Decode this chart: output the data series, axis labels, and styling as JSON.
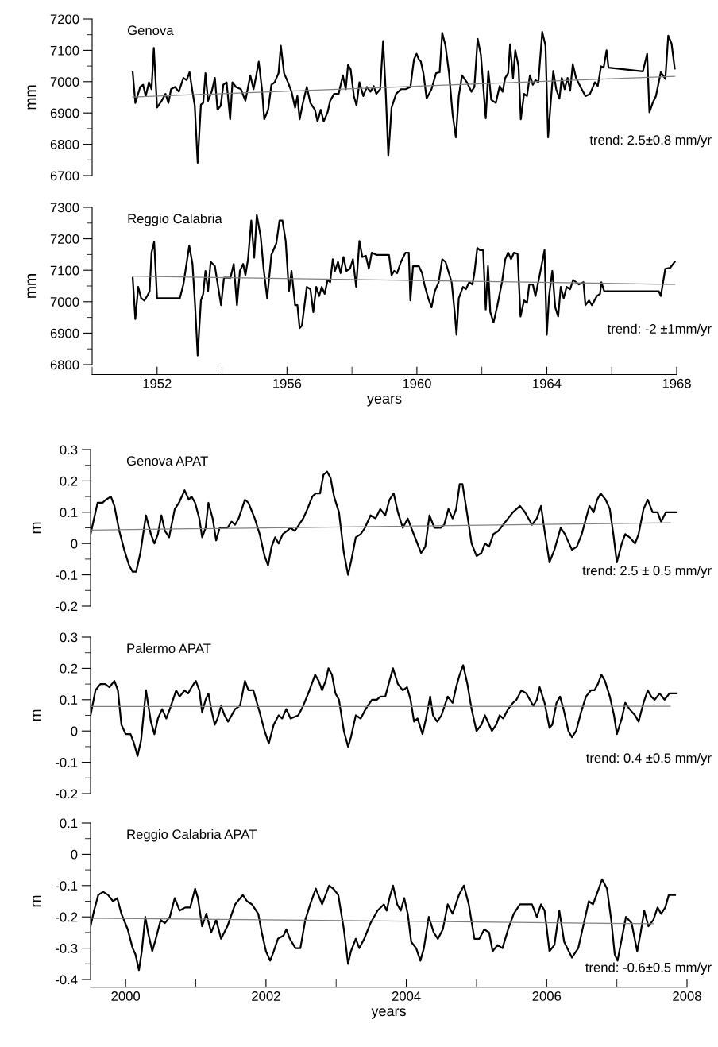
{
  "chart_data": [
    {
      "type": "line",
      "title": "Genova",
      "ylabel": "mm",
      "xlim": [
        1950,
        1968
      ],
      "ylim": [
        6700,
        7200
      ],
      "yticks": [
        6700,
        {
          "value": 6750,
          "label": null
        },
        6800,
        {
          "value": 6850,
          "label": null
        },
        6900,
        {
          "value": 6950,
          "label": null
        },
        7000,
        {
          "value": 7050,
          "label": null
        },
        7100,
        {
          "value": 7150,
          "label": null
        },
        7200
      ],
      "tick_labels": "y",
      "annotations": [
        "trend: 2.5±0.8 mm/yr"
      ],
      "series": [
        {
          "color": "#000000",
          "x": [
            1951.25,
            1951.33,
            1951.48,
            1951.57,
            1951.65,
            1951.75,
            1951.83,
            1951.9,
            1952.0,
            1952.14,
            1952.26,
            1952.35,
            1952.43,
            1952.55,
            1952.67,
            1952.81,
            1952.91,
            1953.0,
            1953.09,
            1953.16,
            1953.25,
            1953.35,
            1953.42,
            1953.49,
            1953.57,
            1953.68,
            1953.78,
            1953.86,
            1953.96,
            1954.04,
            1954.14,
            1954.25,
            1954.32,
            1954.43,
            1954.58,
            1954.72,
            1954.87,
            1954.97,
            1955.04,
            1955.13,
            1955.23,
            1955.3,
            1955.42,
            1955.52,
            1955.62,
            1955.74,
            1955.81,
            1955.91,
            1956.03,
            1956.14,
            1956.25,
            1956.32,
            1956.39,
            1956.49,
            1956.61,
            1956.72,
            1956.86,
            1956.94,
            1957.04,
            1957.13,
            1957.25,
            1957.33,
            1957.45,
            1957.59,
            1957.72,
            1957.81,
            1957.88,
            1957.96,
            1958.06,
            1958.14,
            1958.23,
            1958.35,
            1958.46,
            1958.57,
            1958.67,
            1958.75,
            1958.87,
            1958.96,
            1959.04,
            1959.12,
            1959.22,
            1959.36,
            1959.51,
            1959.65,
            1959.8,
            1959.91,
            1959.99,
            1960.06,
            1960.12,
            1960.2,
            1960.3,
            1960.45,
            1960.59,
            1960.7,
            1960.78,
            1960.88,
            1960.99,
            1961.1,
            1961.2,
            1961.29,
            1961.39,
            1961.54,
            1961.68,
            1961.77,
            1961.87,
            1961.97,
            1962.12,
            1962.2,
            1962.29,
            1962.43,
            1962.55,
            1962.64,
            1962.72,
            1962.81,
            1962.87,
            1962.96,
            1963.03,
            1963.13,
            1963.2,
            1963.3,
            1963.39,
            1963.48,
            1963.57,
            1963.65,
            1963.74,
            1963.86,
            1963.96,
            1964.04,
            1964.12,
            1964.2,
            1964.29,
            1964.39,
            1964.46,
            1964.55,
            1964.64,
            1964.72,
            1964.8,
            1964.9,
            1965.04,
            1965.19,
            1965.33,
            1965.48,
            1965.57,
            1965.67,
            1965.75,
            1965.84,
            1965.9,
            1966.96,
            1967.09,
            1967.16,
            1967.26,
            1967.36,
            1967.51,
            1967.65,
            1967.74,
            1967.84,
            1967.94
          ],
          "values": [
            7030,
            6932,
            6983,
            6990,
            6954,
            6998,
            6976,
            7108,
            6917,
            6939,
            6961,
            6932,
            6976,
            6983,
            6968,
            7012,
            7005,
            7030,
            6968,
            6924,
            6741,
            6927,
            6932,
            7027,
            6939,
            6968,
            7012,
            6910,
            6924,
            6990,
            6998,
            6880,
            6998,
            6983,
            6976,
            6939,
            7020,
            6976,
            7012,
            7064,
            6976,
            6880,
            6910,
            6990,
            6998,
            7027,
            7115,
            7027,
            6998,
            6968,
            6917,
            6954,
            6880,
            6932,
            6983,
            6932,
            6910,
            6873,
            6910,
            6873,
            6902,
            6939,
            6961,
            6961,
            7020,
            6976,
            7053,
            7039,
            6954,
            6924,
            6998,
            6954,
            6983,
            6968,
            6986,
            6961,
            6976,
            7130,
            6968,
            6763,
            6917,
            6961,
            6976,
            6976,
            6983,
            7071,
            7089,
            7071,
            7065,
            7027,
            6946,
            6976,
            7027,
            7030,
            7156,
            7115,
            7027,
            6895,
            6822,
            6954,
            7020,
            6998,
            6968,
            6983,
            7137,
            7086,
            6883,
            7034,
            6942,
            6932,
            6986,
            6968,
            7012,
            7027,
            7119,
            7012,
            7100,
            7049,
            6880,
            6961,
            6954,
            7020,
            6990,
            7005,
            6998,
            7159,
            7115,
            6822,
            6932,
            7034,
            6976,
            6946,
            7012,
            6976,
            7012,
            6971,
            7056,
            7012,
            6983,
            6954,
            6961,
            6998,
            6986,
            7049,
            7045,
            7100,
            7045,
            7033,
            7089,
            6902,
            6932,
            6954,
            7030,
            7009,
            7147,
            7122,
            7042
          ]
        },
        {
          "type": "line",
          "color": "#808080",
          "x": [
            1951.25,
            1967.94
          ],
          "values": [
            6951,
            7017
          ]
        }
      ]
    },
    {
      "type": "line",
      "title": "Reggio Calabria",
      "ylabel": "mm",
      "xlabel": "years",
      "xlim": [
        1950,
        1968
      ],
      "xticks": [
        {
          "value": 1950,
          "label": null
        },
        1952,
        {
          "value": 1954,
          "label": null
        },
        1956,
        {
          "value": 1958,
          "label": null
        },
        1960,
        {
          "value": 1962,
          "label": null
        },
        1964,
        {
          "value": 1966,
          "label": null
        },
        1968
      ],
      "ylim": [
        6800,
        7300
      ],
      "yticks": [
        6800,
        {
          "value": 6850,
          "label": null
        },
        6900,
        {
          "value": 6950,
          "label": null
        },
        7000,
        {
          "value": 7050,
          "label": null
        },
        7100,
        {
          "value": 7150,
          "label": null
        },
        7200,
        {
          "value": 7250,
          "label": null
        },
        7300
      ],
      "annotations": [
        "trend: -2 ±1mm/yr"
      ],
      "series": [
        {
          "color": "#000000",
          "x": [
            1951.25,
            1951.33,
            1951.42,
            1951.51,
            1951.61,
            1951.71,
            1951.77,
            1951.83,
            1951.91,
            1952.0,
            1952.7,
            1952.81,
            1952.99,
            1953.09,
            1953.17,
            1953.25,
            1953.35,
            1953.42,
            1953.49,
            1953.57,
            1953.65,
            1953.78,
            1953.88,
            1953.97,
            1954.06,
            1954.26,
            1954.36,
            1954.46,
            1954.55,
            1954.65,
            1954.72,
            1954.8,
            1954.9,
            1954.99,
            1955.07,
            1955.19,
            1955.28,
            1955.39,
            1955.52,
            1955.67,
            1955.77,
            1955.86,
            1955.96,
            1956.06,
            1956.14,
            1956.25,
            1956.32,
            1956.39,
            1956.46,
            1956.61,
            1956.72,
            1956.81,
            1956.9,
            1956.99,
            1957.07,
            1957.16,
            1957.25,
            1957.33,
            1957.41,
            1957.48,
            1957.57,
            1957.65,
            1957.74,
            1957.83,
            1957.94,
            1958.03,
            1958.13,
            1958.23,
            1958.32,
            1958.43,
            1958.52,
            1958.61,
            1958.75,
            1959.14,
            1959.22,
            1959.3,
            1959.39,
            1959.51,
            1959.65,
            1959.75,
            1959.8,
            1959.88,
            1960.06,
            1960.16,
            1960.23,
            1960.35,
            1960.45,
            1960.55,
            1960.67,
            1960.78,
            1960.88,
            1961.07,
            1961.17,
            1961.22,
            1961.29,
            1961.42,
            1961.51,
            1961.61,
            1961.71,
            1961.77,
            1961.86,
            1961.94,
            1962.04,
            1962.12,
            1962.19,
            1962.26,
            1962.36,
            1962.48,
            1962.62,
            1962.72,
            1962.81,
            1962.9,
            1962.99,
            1963.1,
            1963.19,
            1963.3,
            1963.39,
            1963.46,
            1963.57,
            1963.65,
            1963.78,
            1963.93,
            1964.0,
            1964.07,
            1964.17,
            1964.26,
            1964.35,
            1964.43,
            1964.52,
            1964.61,
            1964.72,
            1964.81,
            1964.99,
            1965.13,
            1965.19,
            1965.3,
            1965.39,
            1965.54,
            1965.64,
            1965.68,
            1965.77,
            1967.45,
            1967.51,
            1967.65,
            1967.8,
            1967.94
          ],
          "values": [
            7076,
            6945,
            7047,
            7011,
            7004,
            7021,
            7033,
            7156,
            7190,
            7011,
            7011,
            7055,
            7178,
            7120,
            6989,
            6829,
            7004,
            7025,
            7098,
            7033,
            7127,
            7113,
            7047,
            6989,
            7076,
            7076,
            7120,
            6989,
            7098,
            7120,
            7084,
            7135,
            7258,
            7140,
            7275,
            7207,
            7105,
            7011,
            7149,
            7185,
            7258,
            7258,
            7193,
            7033,
            7098,
            6989,
            6989,
            6916,
            6924,
            7047,
            7040,
            6967,
            7047,
            7018,
            7047,
            7025,
            7069,
            7062,
            7135,
            7098,
            7127,
            7091,
            7142,
            7098,
            7105,
            7135,
            7047,
            7193,
            7142,
            7146,
            7105,
            7156,
            7149,
            7149,
            7084,
            7098,
            7091,
            7127,
            7156,
            7156,
            7004,
            7113,
            7113,
            7091,
            7055,
            7011,
            6982,
            7033,
            7062,
            7135,
            7127,
            7062,
            6960,
            6895,
            7011,
            7047,
            7040,
            7062,
            7055,
            7091,
            7171,
            7164,
            7164,
            6975,
            7113,
            6967,
            6934,
            6989,
            7062,
            7135,
            7156,
            7135,
            7156,
            7152,
            6953,
            7004,
            6996,
            7055,
            7055,
            7018,
            7084,
            7164,
            6895,
            7018,
            7098,
            6982,
            6953,
            7047,
            7011,
            7047,
            7040,
            7069,
            7055,
            7062,
            6989,
            7004,
            6989,
            7018,
            7025,
            7062,
            7033,
            7033,
            7018,
            7105,
            7108,
            7127
          ]
        },
        {
          "type": "line",
          "color": "#808080",
          "x": [
            1951.25,
            1967.94
          ],
          "values": [
            7081,
            7055
          ]
        }
      ]
    },
    {
      "type": "line",
      "title": "Genova APAT",
      "ylabel": "m",
      "xlim": [
        1999.5,
        2008
      ],
      "ylim": [
        -0.2,
        0.3
      ],
      "yticks": [
        -0.2,
        {
          "value": -0.15,
          "label": null
        },
        -0.1,
        {
          "value": -0.05,
          "label": null
        },
        0,
        {
          "value": 0.05,
          "label": null
        },
        0.1,
        {
          "value": 0.15,
          "label": null
        },
        0.2,
        {
          "value": 0.25,
          "label": null
        },
        0.3
      ],
      "tick_labels": "y",
      "annotations": [
        "trend: 2.5 ± 0.5 mm/yr"
      ],
      "series": [
        {
          "color": "#000000",
          "x": [
            1999.5,
            1999.6,
            1999.67,
            1999.72,
            1999.79,
            1999.84,
            1999.91,
            1999.98,
            2000.05,
            2000.1,
            2000.15,
            2000.21,
            2000.29,
            2000.36,
            2000.41,
            2000.46,
            2000.51,
            2000.56,
            2000.62,
            2000.7,
            2000.76,
            2000.84,
            2000.9,
            2000.94,
            2000.99,
            2001.05,
            2001.09,
            2001.14,
            2001.18,
            2001.24,
            2001.29,
            2001.34,
            2001.39,
            2001.45,
            2001.51,
            2001.56,
            2001.61,
            2001.7,
            2001.75,
            2001.84,
            2001.91,
            2001.98,
            2002.03,
            2002.08,
            2002.13,
            2002.18,
            2002.24,
            2002.3,
            2002.35,
            2002.41,
            2002.47,
            2002.53,
            2002.59,
            2002.66,
            2002.71,
            2002.77,
            2002.82,
            2002.87,
            2002.92,
            2002.97,
            2003.04,
            2003.11,
            2003.17,
            2003.21,
            2003.28,
            2003.35,
            2003.41,
            2003.49,
            2003.56,
            2003.63,
            2003.7,
            2003.76,
            2003.82,
            2003.88,
            2003.95,
            2004.02,
            2004.07,
            2004.14,
            2004.21,
            2004.27,
            2004.33,
            2004.4,
            2004.49,
            2004.54,
            2004.6,
            2004.66,
            2004.71,
            2004.76,
            2004.8,
            2004.87,
            2004.93,
            2005.0,
            2005.07,
            2005.12,
            2005.18,
            2005.24,
            2005.31,
            2005.38,
            2005.45,
            2005.52,
            2005.62,
            2005.69,
            2005.79,
            2005.86,
            2005.92,
            2005.97,
            2006.04,
            2006.11,
            2006.2,
            2006.26,
            2006.36,
            2006.43,
            2006.5,
            2006.56,
            2006.61,
            2006.67,
            2006.72,
            2006.77,
            2006.84,
            2006.9,
            2006.95,
            2007.0,
            2007.07,
            2007.12,
            2007.18,
            2007.26,
            2007.31,
            2007.38,
            2007.44,
            2007.51,
            2007.58,
            2007.63,
            2007.7,
            2007.85
          ],
          "values": [
            0.03,
            0.13,
            0.13,
            0.14,
            0.15,
            0.12,
            0.04,
            -0.02,
            -0.07,
            -0.09,
            -0.09,
            -0.03,
            0.09,
            0.03,
            0.0,
            0.03,
            0.09,
            0.04,
            0.02,
            0.11,
            0.13,
            0.17,
            0.14,
            0.15,
            0.13,
            0.08,
            0.02,
            0.05,
            0.13,
            0.08,
            0.01,
            0.05,
            0.05,
            0.05,
            0.07,
            0.06,
            0.08,
            0.14,
            0.13,
            0.08,
            0.03,
            -0.04,
            -0.07,
            -0.01,
            0.02,
            0.0,
            0.03,
            0.04,
            0.05,
            0.04,
            0.06,
            0.08,
            0.11,
            0.15,
            0.16,
            0.16,
            0.22,
            0.23,
            0.21,
            0.15,
            0.1,
            -0.03,
            -0.1,
            -0.06,
            0.02,
            0.03,
            0.05,
            0.09,
            0.08,
            0.11,
            0.09,
            0.14,
            0.16,
            0.1,
            0.05,
            0.08,
            0.05,
            0.01,
            -0.03,
            -0.01,
            0.09,
            0.05,
            0.05,
            0.06,
            0.11,
            0.08,
            0.11,
            0.19,
            0.19,
            0.09,
            0.0,
            -0.04,
            -0.03,
            0.0,
            -0.01,
            0.03,
            0.04,
            0.06,
            0.08,
            0.1,
            0.12,
            0.1,
            0.06,
            0.08,
            0.12,
            0.04,
            -0.06,
            -0.02,
            0.05,
            0.03,
            -0.02,
            -0.01,
            0.03,
            0.08,
            0.12,
            0.1,
            0.14,
            0.16,
            0.14,
            0.11,
            0.03,
            -0.06,
            0.0,
            0.03,
            0.02,
            0.0,
            0.03,
            0.11,
            0.14,
            0.1,
            0.1,
            0.07,
            0.1,
            0.1
          ]
        },
        {
          "type": "line",
          "color": "#808080",
          "x": [
            1999.5,
            2007.76
          ],
          "values": [
            0.043,
            0.066
          ]
        }
      ]
    },
    {
      "type": "line",
      "title": "Palermo APAT",
      "ylabel": "m",
      "xlim": [
        1999.5,
        2008
      ],
      "ylim": [
        -0.2,
        0.3
      ],
      "yticks": [
        -0.2,
        {
          "value": -0.15,
          "label": null
        },
        -0.1,
        {
          "value": -0.05,
          "label": null
        },
        0,
        {
          "value": 0.05,
          "label": null
        },
        0.1,
        {
          "value": 0.15,
          "label": null
        },
        0.2,
        {
          "value": 0.25,
          "label": null
        },
        0.3
      ],
      "tick_labels": "y",
      "annotations": [
        "trend: 0.4 ±0.5 mm/yr"
      ],
      "series": [
        {
          "color": "#000000",
          "x": [
            1999.5,
            1999.57,
            1999.64,
            1999.71,
            1999.77,
            1999.84,
            1999.89,
            1999.94,
            2000.0,
            2000.07,
            2000.12,
            2000.17,
            2000.22,
            2000.29,
            2000.36,
            2000.41,
            2000.46,
            2000.52,
            2000.58,
            2000.63,
            2000.72,
            2000.77,
            2000.84,
            2000.89,
            2000.94,
            2001.0,
            2001.05,
            2001.09,
            2001.14,
            2001.18,
            2001.22,
            2001.27,
            2001.31,
            2001.36,
            2001.41,
            2001.46,
            2001.51,
            2001.56,
            2001.63,
            2001.7,
            2001.75,
            2001.82,
            2001.91,
            2001.98,
            2002.04,
            2002.11,
            2002.18,
            2002.23,
            2002.29,
            2002.35,
            2002.46,
            2002.53,
            2002.62,
            2002.7,
            2002.75,
            2002.8,
            2002.85,
            2002.89,
            2002.94,
            2002.99,
            2003.04,
            2003.11,
            2003.17,
            2003.21,
            2003.28,
            2003.35,
            2003.42,
            2003.51,
            2003.58,
            2003.63,
            2003.7,
            2003.76,
            2003.81,
            2003.88,
            2003.95,
            2004.01,
            2004.06,
            2004.11,
            2004.16,
            2004.23,
            2004.28,
            2004.34,
            2004.38,
            2004.44,
            2004.5,
            2004.59,
            2004.66,
            2004.71,
            2004.76,
            2004.81,
            2004.87,
            2004.93,
            2005.0,
            2005.07,
            2005.12,
            2005.18,
            2005.22,
            2005.28,
            2005.33,
            2005.38,
            2005.45,
            2005.52,
            2005.57,
            2005.64,
            2005.71,
            2005.76,
            2005.81,
            2005.86,
            2005.9,
            2005.97,
            2006.04,
            2006.08,
            2006.14,
            2006.19,
            2006.24,
            2006.31,
            2006.36,
            2006.42,
            2006.49,
            2006.56,
            2006.63,
            2006.68,
            2006.73,
            2006.78,
            2006.83,
            2006.9,
            2006.96,
            2007.0,
            2007.07,
            2007.12,
            2007.18,
            2007.26,
            2007.31,
            2007.38,
            2007.44,
            2007.49,
            2007.54,
            2007.61,
            2007.68,
            2007.75,
            2007.85
          ],
          "values": [
            0.05,
            0.13,
            0.15,
            0.15,
            0.14,
            0.16,
            0.13,
            0.02,
            -0.01,
            -0.01,
            -0.04,
            -0.08,
            -0.03,
            0.13,
            0.03,
            -0.01,
            0.04,
            0.07,
            0.04,
            0.07,
            0.13,
            0.11,
            0.13,
            0.12,
            0.14,
            0.16,
            0.13,
            0.06,
            0.1,
            0.12,
            0.07,
            0.02,
            0.04,
            0.08,
            0.05,
            0.03,
            0.05,
            0.07,
            0.08,
            0.16,
            0.13,
            0.13,
            0.06,
            0.0,
            -0.04,
            0.02,
            0.05,
            0.04,
            0.07,
            0.04,
            0.05,
            0.08,
            0.13,
            0.18,
            0.16,
            0.13,
            0.16,
            0.2,
            0.18,
            0.12,
            0.1,
            0.0,
            -0.05,
            -0.02,
            0.05,
            0.04,
            0.07,
            0.1,
            0.1,
            0.11,
            0.11,
            0.16,
            0.2,
            0.15,
            0.13,
            0.14,
            0.1,
            0.03,
            0.04,
            -0.01,
            0.04,
            0.11,
            0.05,
            0.03,
            0.05,
            0.11,
            0.09,
            0.14,
            0.18,
            0.21,
            0.15,
            0.07,
            0.0,
            0.02,
            0.05,
            0.02,
            0.0,
            0.02,
            0.05,
            0.04,
            0.07,
            0.09,
            0.1,
            0.13,
            0.12,
            0.1,
            0.08,
            0.1,
            0.14,
            0.09,
            0.01,
            0.02,
            0.09,
            0.11,
            0.07,
            0.0,
            -0.02,
            0.0,
            0.06,
            0.11,
            0.13,
            0.13,
            0.15,
            0.18,
            0.16,
            0.11,
            0.05,
            -0.01,
            0.04,
            0.09,
            0.07,
            0.05,
            0.03,
            0.09,
            0.13,
            0.11,
            0.1,
            0.12,
            0.1,
            0.12,
            0.12
          ]
        },
        {
          "type": "line",
          "color": "#808080",
          "x": [
            1999.5,
            2007.76
          ],
          "values": [
            0.078,
            0.079
          ]
        }
      ]
    },
    {
      "type": "line",
      "title": "Reggio Calabria APAT",
      "ylabel": "m",
      "xlabel": "years",
      "xlim": [
        1999.5,
        2008
      ],
      "xticks": [
        2000,
        {
          "value": 2001,
          "label": null
        },
        2002,
        {
          "value": 2003,
          "label": null
        },
        2004,
        {
          "value": 2005,
          "label": null
        },
        2006,
        {
          "value": 2007,
          "label": null
        },
        2008
      ],
      "ylim": [
        -0.4,
        0.1
      ],
      "yticks": [
        -0.4,
        {
          "value": -0.35,
          "label": null
        },
        -0.3,
        {
          "value": -0.25,
          "label": null
        },
        -0.2,
        {
          "value": -0.15,
          "label": null
        },
        -0.1,
        {
          "value": -0.05,
          "label": null
        },
        0,
        {
          "value": 0.05,
          "label": null
        },
        0.1
      ],
      "annotations": [
        "trend: -0.6±0.5 mm/yr"
      ],
      "series": [
        {
          "color": "#000000",
          "x": [
            1999.5,
            1999.55,
            1999.61,
            1999.68,
            1999.75,
            1999.82,
            1999.88,
            1999.94,
            2000.03,
            2000.1,
            2000.14,
            2000.19,
            2000.23,
            2000.28,
            2000.32,
            2000.38,
            2000.43,
            2000.5,
            2000.56,
            2000.63,
            2000.7,
            2000.77,
            2000.85,
            2000.92,
            2000.99,
            2001.03,
            2001.09,
            2001.15,
            2001.22,
            2001.29,
            2001.36,
            2001.45,
            2001.56,
            2001.67,
            2001.73,
            2001.8,
            2001.89,
            2001.94,
            2002.0,
            2002.06,
            2002.11,
            2002.17,
            2002.25,
            2002.29,
            2002.34,
            2002.42,
            2002.49,
            2002.56,
            2002.63,
            2002.71,
            2002.8,
            2002.85,
            2002.9,
            2002.96,
            2003.03,
            2003.11,
            2003.17,
            2003.21,
            2003.28,
            2003.33,
            2003.4,
            2003.49,
            2003.59,
            2003.68,
            2003.72,
            2003.76,
            2003.81,
            2003.87,
            2003.92,
            2003.97,
            2004.02,
            2004.07,
            2004.14,
            2004.2,
            2004.25,
            2004.32,
            2004.39,
            2004.45,
            2004.52,
            2004.59,
            2004.66,
            2004.75,
            2004.82,
            2004.89,
            2004.97,
            2005.04,
            2005.11,
            2005.18,
            2005.23,
            2005.3,
            2005.37,
            2005.45,
            2005.53,
            2005.62,
            2005.71,
            2005.79,
            2005.86,
            2005.92,
            2005.97,
            2006.04,
            2006.11,
            2006.18,
            2006.25,
            2006.36,
            2006.45,
            2006.54,
            2006.6,
            2006.66,
            2006.71,
            2006.79,
            2006.86,
            2006.92,
            2006.97,
            2007.01,
            2007.07,
            2007.13,
            2007.21,
            2007.29,
            2007.34,
            2007.39,
            2007.45,
            2007.52,
            2007.58,
            2007.63,
            2007.69,
            2007.74,
            2007.78,
            2007.83
          ],
          "values": [
            -0.23,
            -0.18,
            -0.13,
            -0.12,
            -0.13,
            -0.15,
            -0.14,
            -0.19,
            -0.24,
            -0.3,
            -0.32,
            -0.37,
            -0.31,
            -0.2,
            -0.25,
            -0.31,
            -0.27,
            -0.21,
            -0.22,
            -0.2,
            -0.14,
            -0.18,
            -0.17,
            -0.17,
            -0.11,
            -0.14,
            -0.23,
            -0.19,
            -0.25,
            -0.21,
            -0.27,
            -0.23,
            -0.16,
            -0.13,
            -0.15,
            -0.16,
            -0.19,
            -0.25,
            -0.31,
            -0.34,
            -0.31,
            -0.27,
            -0.26,
            -0.24,
            -0.27,
            -0.3,
            -0.3,
            -0.21,
            -0.16,
            -0.11,
            -0.16,
            -0.13,
            -0.1,
            -0.11,
            -0.13,
            -0.24,
            -0.35,
            -0.31,
            -0.27,
            -0.3,
            -0.27,
            -0.22,
            -0.18,
            -0.16,
            -0.18,
            -0.14,
            -0.1,
            -0.16,
            -0.18,
            -0.14,
            -0.19,
            -0.28,
            -0.3,
            -0.34,
            -0.3,
            -0.2,
            -0.25,
            -0.27,
            -0.24,
            -0.16,
            -0.19,
            -0.13,
            -0.1,
            -0.16,
            -0.27,
            -0.27,
            -0.24,
            -0.25,
            -0.31,
            -0.29,
            -0.3,
            -0.24,
            -0.19,
            -0.16,
            -0.16,
            -0.16,
            -0.2,
            -0.16,
            -0.18,
            -0.31,
            -0.29,
            -0.18,
            -0.28,
            -0.33,
            -0.3,
            -0.21,
            -0.15,
            -0.16,
            -0.13,
            -0.08,
            -0.11,
            -0.21,
            -0.32,
            -0.34,
            -0.27,
            -0.2,
            -0.22,
            -0.31,
            -0.25,
            -0.18,
            -0.23,
            -0.21,
            -0.17,
            -0.19,
            -0.17,
            -0.13,
            -0.13,
            -0.13
          ]
        },
        {
          "type": "line",
          "color": "#808080",
          "x": [
            1999.5,
            2007.53
          ],
          "values": [
            -0.204,
            -0.222
          ]
        }
      ]
    }
  ]
}
